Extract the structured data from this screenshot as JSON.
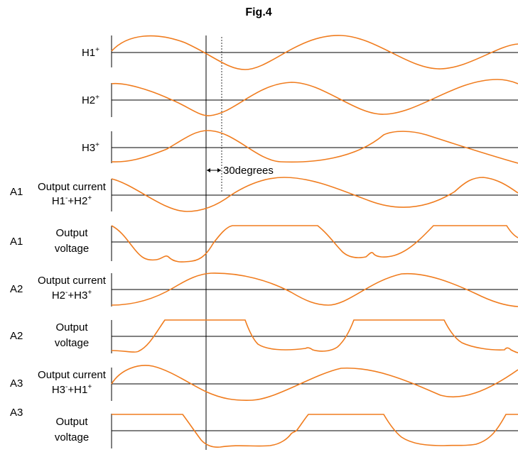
{
  "title": "Fig.4",
  "annotation": "30degrees",
  "rows": [
    {
      "id": "h1",
      "head": "H1",
      "head_sup": "+"
    },
    {
      "id": "h2",
      "head": "H2",
      "head_sup": "+"
    },
    {
      "id": "h3",
      "head": "H3",
      "head_sup": "+"
    },
    {
      "id": "a1-current",
      "prefix": "A1",
      "line1": "Output current",
      "line2": {
        "a": "H1",
        "a_sup": "-",
        "b": "+H2",
        "b_sup": "+"
      }
    },
    {
      "id": "a1-voltage",
      "prefix": "A1",
      "line1": "Output",
      "line2_text": "voltage"
    },
    {
      "id": "a2-current",
      "prefix": "A2",
      "line1": "Output current",
      "line2": {
        "a": "H2",
        "a_sup": "-",
        "b": "+H3",
        "b_sup": "+"
      }
    },
    {
      "id": "a2-voltage",
      "prefix": "A2",
      "line1": "Output",
      "line2_text": "voltage"
    },
    {
      "id": "a3-current",
      "prefix": "A3",
      "line1": "Output current",
      "line2": {
        "a": "H3",
        "a_sup": "-",
        "b": "+H1",
        "b_sup": "+"
      }
    },
    {
      "id": "a3-voltage",
      "prefix": "A3",
      "line1": "Output",
      "line2_text": "voltage"
    }
  ],
  "colors": {
    "waveform": "#f07c1e",
    "axes": "#000000"
  }
}
